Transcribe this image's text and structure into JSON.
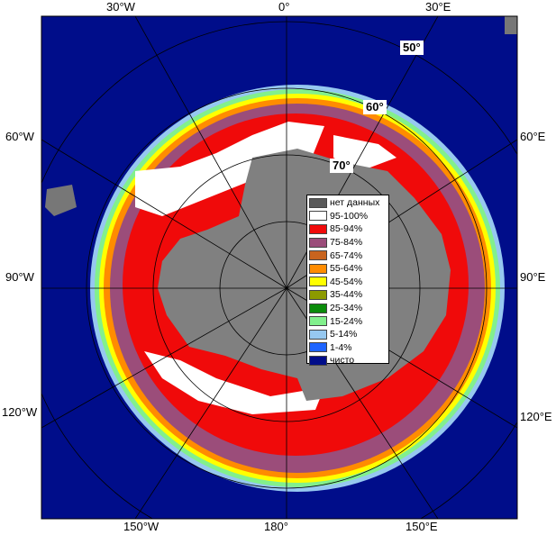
{
  "colors": {
    "ocean": "#000d8a",
    "land": "#808080",
    "background_land": "#777777",
    "nodata": "#5a5a5a"
  },
  "labels": {
    "top_30w": "30°W",
    "top_0": "0°",
    "top_30e": "30°E",
    "left_60w": "60°W",
    "left_90w": "90°W",
    "left_120w": "120°W",
    "right_60e": "60°E",
    "right_90e": "90°E",
    "right_120e": "120°E",
    "bottom_150w": "150°W",
    "bottom_180": "180°",
    "bottom_150e": "150°E"
  },
  "latitudes": {
    "lat50": "50°",
    "lat60": "60°",
    "lat70": "70°"
  },
  "legend": [
    {
      "label": "нет данных",
      "color": "#5a5a5a"
    },
    {
      "label": "95-100%",
      "color": "#ffffff"
    },
    {
      "label": "85-94%",
      "color": "#f00a0a"
    },
    {
      "label": "75-84%",
      "color": "#9b4d7a"
    },
    {
      "label": "65-74%",
      "color": "#c8641e"
    },
    {
      "label": "55-64%",
      "color": "#ff8c00"
    },
    {
      "label": "45-54%",
      "color": "#ffff00"
    },
    {
      "label": "35-44%",
      "color": "#8c9a00"
    },
    {
      "label": "25-34%",
      "color": "#0a8c0a"
    },
    {
      "label": "15-24%",
      "color": "#82f08c"
    },
    {
      "label": "5-14%",
      "color": "#96c8f0"
    },
    {
      "label": "1-4%",
      "color": "#1e64ff"
    },
    {
      "label": "чисто",
      "color": "#000d8a"
    }
  ]
}
